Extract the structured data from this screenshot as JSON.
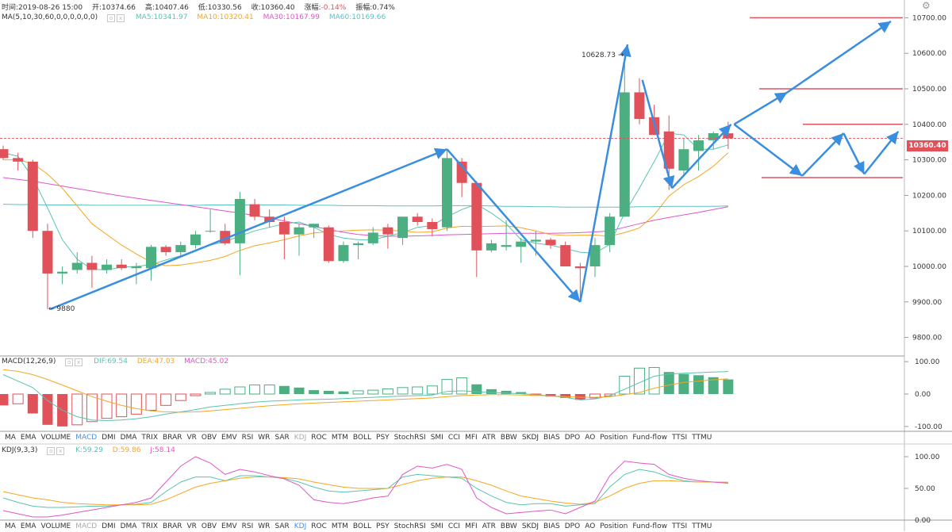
{
  "header": {
    "time": "时间:2019-08-26 15:00",
    "open": "开:10374.66",
    "high": "高:10407.46",
    "low": "低:10330.56",
    "close": "收:10360.40",
    "change_label": "涨幅:",
    "change_value": "-0.14%",
    "amplitude": "振幅:0.74%"
  },
  "ma_legend": {
    "label": "MA(5,10,30,60,0,0,0,0,0,0)",
    "ma5": "MA5:10341.97",
    "ma10": "MA10:10320.41",
    "ma30": "MA30:10167.99",
    "ma60": "MA60:10169.66"
  },
  "macd_legend": {
    "label": "MACD(12,26,9)",
    "dif": "DIF:69.54",
    "dea": "DEA:47.03",
    "macd": "MACD:45.02"
  },
  "kdj_legend": {
    "label": "KDJ(9,3,3)",
    "k": "K:59.29",
    "d": "D:59.86",
    "j": "J:58.14"
  },
  "current_price_tag": "10360.40",
  "annotations": {
    "high": "10628.73",
    "low": "9880"
  },
  "indicator_tabs": [
    "MA",
    "EMA",
    "VOLUME",
    "MACD",
    "DMI",
    "DMA",
    "TRIX",
    "BRAR",
    "VR",
    "OBV",
    "EMV",
    "RSI",
    "WR",
    "SAR",
    "KDJ",
    "ROC",
    "MTM",
    "BOLL",
    "PSY",
    "StochRSI",
    "SMI",
    "CCI",
    "MFI",
    "ATR",
    "BBW",
    "SKDJ",
    "BIAS",
    "DPO",
    "AO",
    "Position",
    "Fund-flow",
    "TTSI",
    "TTMU"
  ],
  "indicator_tabs_row1_active": "MACD",
  "indicator_tabs_row1_dim": "KDJ",
  "indicator_tabs_row2_active": "KDJ",
  "indicator_tabs_row2_dim": "MACD",
  "colors": {
    "up": "#4caf82",
    "down": "#e0515a",
    "ma5": "#58c4b0",
    "ma10": "#f5a623",
    "ma30": "#e056c8",
    "ma60": "#5bc0c8",
    "arrow": "#3a8ee0",
    "level": "#e05560",
    "dif": "#58c4b0",
    "dea": "#f5a623",
    "kdj_k": "#58c4b0",
    "kdj_d": "#f5a623",
    "kdj_j": "#e056c8"
  },
  "chart_data": [
    {
      "type": "candlestick",
      "title": "",
      "ylim": [
        9750,
        10750
      ],
      "y_ticks": [
        "10700.00",
        "10600.00",
        "10500.00",
        "10400.00",
        "10300.00",
        "10200.00",
        "10100.00",
        "10000.00",
        "9900.00",
        "9800.00"
      ],
      "candles": [
        {
          "o": 10330,
          "h": 10340,
          "l": 10300,
          "c": 10305
        },
        {
          "o": 10305,
          "h": 10320,
          "l": 10270,
          "c": 10295
        },
        {
          "o": 10295,
          "h": 10300,
          "l": 10080,
          "c": 10100
        },
        {
          "o": 10100,
          "h": 10120,
          "l": 9880,
          "c": 9980
        },
        {
          "o": 9980,
          "h": 10000,
          "l": 9950,
          "c": 9985
        },
        {
          "o": 9990,
          "h": 10040,
          "l": 9980,
          "c": 10010
        },
        {
          "o": 10010,
          "h": 10030,
          "l": 9940,
          "c": 9990
        },
        {
          "o": 9990,
          "h": 10020,
          "l": 9980,
          "c": 10005
        },
        {
          "o": 10005,
          "h": 10020,
          "l": 9990,
          "c": 9995
        },
        {
          "o": 9995,
          "h": 10010,
          "l": 9950,
          "c": 10000
        },
        {
          "o": 9995,
          "h": 10060,
          "l": 9960,
          "c": 10055
        },
        {
          "o": 10055,
          "h": 10060,
          "l": 10030,
          "c": 10040
        },
        {
          "o": 10040,
          "h": 10070,
          "l": 10030,
          "c": 10060
        },
        {
          "o": 10060,
          "h": 10100,
          "l": 10050,
          "c": 10090
        },
        {
          "o": 10100,
          "h": 10160,
          "l": 10095,
          "c": 10100
        },
        {
          "o": 10100,
          "h": 10120,
          "l": 10060,
          "c": 10065
        },
        {
          "o": 10065,
          "h": 10210,
          "l": 9975,
          "c": 10190
        },
        {
          "o": 10175,
          "h": 10190,
          "l": 10130,
          "c": 10140
        },
        {
          "o": 10140,
          "h": 10160,
          "l": 10110,
          "c": 10125
        },
        {
          "o": 10125,
          "h": 10140,
          "l": 10020,
          "c": 10090
        },
        {
          "o": 10090,
          "h": 10120,
          "l": 10030,
          "c": 10110
        },
        {
          "o": 10110,
          "h": 10120,
          "l": 10080,
          "c": 10120
        },
        {
          "o": 10110,
          "h": 10115,
          "l": 10010,
          "c": 10015
        },
        {
          "o": 10015,
          "h": 10070,
          "l": 10010,
          "c": 10060
        },
        {
          "o": 10060,
          "h": 10070,
          "l": 10020,
          "c": 10065
        },
        {
          "o": 10065,
          "h": 10110,
          "l": 10060,
          "c": 10095
        },
        {
          "o": 10110,
          "h": 10120,
          "l": 10050,
          "c": 10090
        },
        {
          "o": 10080,
          "h": 10140,
          "l": 10060,
          "c": 10140
        },
        {
          "o": 10140,
          "h": 10150,
          "l": 10115,
          "c": 10125
        },
        {
          "o": 10125,
          "h": 10135,
          "l": 10085,
          "c": 10105
        },
        {
          "o": 10110,
          "h": 10330,
          "l": 10100,
          "c": 10305
        },
        {
          "o": 10295,
          "h": 10305,
          "l": 10195,
          "c": 10235
        },
        {
          "o": 10235,
          "h": 10240,
          "l": 9970,
          "c": 10045
        },
        {
          "o": 10045,
          "h": 10075,
          "l": 10040,
          "c": 10065
        },
        {
          "o": 10055,
          "h": 10130,
          "l": 10045,
          "c": 10060
        },
        {
          "o": 10055,
          "h": 10080,
          "l": 10010,
          "c": 10070
        },
        {
          "o": 10070,
          "h": 10100,
          "l": 10030,
          "c": 10075
        },
        {
          "o": 10075,
          "h": 10080,
          "l": 10050,
          "c": 10060
        },
        {
          "o": 10060,
          "h": 10070,
          "l": 10000,
          "c": 10000
        },
        {
          "o": 10000,
          "h": 10010,
          "l": 9905,
          "c": 9995
        },
        {
          "o": 10000,
          "h": 10080,
          "l": 9970,
          "c": 10060
        },
        {
          "o": 10060,
          "h": 10150,
          "l": 10040,
          "c": 10140
        },
        {
          "o": 10140,
          "h": 10610,
          "l": 10140,
          "c": 10490
        },
        {
          "o": 10490,
          "h": 10530,
          "l": 10400,
          "c": 10415
        },
        {
          "o": 10420,
          "h": 10455,
          "l": 10370,
          "c": 10370
        },
        {
          "o": 10380,
          "h": 10425,
          "l": 10215,
          "c": 10275
        },
        {
          "o": 10270,
          "h": 10360,
          "l": 10260,
          "c": 10330
        },
        {
          "o": 10325,
          "h": 10370,
          "l": 10270,
          "c": 10355
        },
        {
          "o": 10355,
          "h": 10380,
          "l": 10330,
          "c": 10375
        },
        {
          "o": 10374.66,
          "h": 10407.46,
          "l": 10330.56,
          "c": 10360.4
        }
      ],
      "ma5": [
        10320,
        10310,
        10250,
        10165,
        10075,
        10020,
        9992,
        9990,
        9998,
        10000,
        10005,
        10018,
        10030,
        10043,
        10060,
        10070,
        10085,
        10100,
        10110,
        10120,
        10125,
        10110,
        10090,
        10080,
        10075,
        10075,
        10085,
        10095,
        10110,
        10115,
        10140,
        10160,
        10175,
        10150,
        10120,
        10075,
        10065,
        10060,
        10050,
        10040,
        10037,
        10062,
        10150,
        10220,
        10295,
        10375,
        10370,
        10330,
        10330,
        10342
      ],
      "ma10": [
        10300,
        10300,
        10290,
        10260,
        10220,
        10170,
        10120,
        10090,
        10060,
        10035,
        10012,
        10002,
        10004,
        10010,
        10017,
        10028,
        10045,
        10058,
        10066,
        10075,
        10086,
        10094,
        10098,
        10100,
        10102,
        10103,
        10102,
        10099,
        10096,
        10097,
        10108,
        10113,
        10112,
        10113,
        10114,
        10109,
        10100,
        10090,
        10087,
        10088,
        10088,
        10085,
        10095,
        10108,
        10145,
        10198,
        10230,
        10253,
        10282,
        10320
      ],
      "ma30": [
        10250,
        10245,
        10240,
        10233,
        10226,
        10219,
        10212,
        10205,
        10198,
        10192,
        10186,
        10180,
        10174,
        10168,
        10162,
        10156,
        10150,
        10143,
        10136,
        10128,
        10120,
        10112,
        10104,
        10096,
        10090,
        10087,
        10085,
        10085,
        10086,
        10087,
        10089,
        10090,
        10091,
        10092,
        10093,
        10093,
        10093,
        10093,
        10094,
        10095,
        10097,
        10100,
        10110,
        10120,
        10130,
        10138,
        10145,
        10152,
        10160,
        10168
      ],
      "ma60": [
        10175,
        10174,
        10174,
        10173,
        10173,
        10173,
        10172,
        10172,
        10172,
        10172,
        10172,
        10172,
        10172,
        10172,
        10173,
        10173,
        10173,
        10173,
        10173,
        10173,
        10172,
        10172,
        10172,
        10171,
        10171,
        10171,
        10170,
        10170,
        10170,
        10170,
        10171,
        10171,
        10171,
        10170,
        10169,
        10169,
        10168,
        10168,
        10167,
        10167,
        10167,
        10167,
        10167,
        10168,
        10168,
        10169,
        10169,
        10169,
        10169,
        10170
      ]
    },
    {
      "type": "bar",
      "title": "",
      "ylim": [
        -115,
        115
      ],
      "y_ticks": [
        "100.00",
        "0.00",
        "-100.00"
      ],
      "macd": [
        -35,
        -30,
        -60,
        -95,
        -100,
        -95,
        -85,
        -75,
        -70,
        -62,
        -50,
        -35,
        -20,
        -5,
        5,
        15,
        22,
        28,
        28,
        25,
        20,
        12,
        10,
        8,
        10,
        12,
        16,
        20,
        22,
        25,
        45,
        50,
        30,
        15,
        10,
        6,
        -4,
        -8,
        -12,
        -18,
        -12,
        -6,
        55,
        80,
        82,
        68,
        62,
        58,
        52,
        45
      ],
      "dif": [
        60,
        40,
        20,
        -20,
        -50,
        -70,
        -80,
        -82,
        -80,
        -76,
        -70,
        -62,
        -55,
        -48,
        -40,
        -35,
        -30,
        -25,
        -22,
        -20,
        -18,
        -17,
        -16,
        -14,
        -12,
        -10,
        -8,
        -6,
        -5,
        -3,
        8,
        10,
        7,
        5,
        3,
        1,
        -2,
        -6,
        -10,
        -18,
        -15,
        -5,
        15,
        35,
        55,
        62,
        64,
        66,
        68,
        69.54
      ],
      "dea": [
        75,
        70,
        60,
        45,
        28,
        10,
        -8,
        -22,
        -35,
        -45,
        -52,
        -55,
        -56,
        -55,
        -52,
        -48,
        -44,
        -40,
        -36,
        -33,
        -30,
        -28,
        -26,
        -24,
        -22,
        -20,
        -18,
        -16,
        -14,
        -12,
        -8,
        -5,
        -3,
        -2,
        -2,
        -3,
        -4,
        -6,
        -8,
        -10,
        -10,
        -8,
        -2,
        5,
        18,
        28,
        36,
        40,
        44,
        47.03
      ]
    },
    {
      "type": "line",
      "title": "",
      "ylim": [
        0,
        120
      ],
      "y_ticks": [
        "100.00",
        "50.00",
        "0.00"
      ],
      "k": [
        35,
        28,
        22,
        20,
        20,
        21,
        22,
        22,
        24,
        25,
        28,
        45,
        60,
        68,
        68,
        62,
        70,
        70,
        68,
        66,
        60,
        52,
        46,
        44,
        46,
        48,
        50,
        68,
        72,
        70,
        68,
        66,
        50,
        38,
        28,
        24,
        26,
        26,
        22,
        24,
        26,
        52,
        72,
        80,
        76,
        68,
        62,
        60,
        60,
        59.29
      ],
      "d": [
        45,
        40,
        35,
        32,
        28,
        26,
        25,
        24,
        24,
        24,
        25,
        32,
        42,
        52,
        58,
        62,
        66,
        68,
        68,
        67,
        65,
        60,
        56,
        52,
        50,
        50,
        50,
        56,
        62,
        66,
        68,
        68,
        62,
        55,
        46,
        38,
        34,
        30,
        27,
        25,
        28,
        38,
        50,
        58,
        62,
        62,
        61,
        60,
        60,
        59.86
      ],
      "j": [
        15,
        10,
        5,
        5,
        8,
        12,
        16,
        20,
        24,
        28,
        35,
        60,
        85,
        100,
        90,
        72,
        80,
        76,
        70,
        65,
        55,
        32,
        28,
        26,
        30,
        35,
        38,
        72,
        85,
        82,
        88,
        80,
        35,
        20,
        10,
        12,
        14,
        16,
        10,
        20,
        30,
        70,
        93,
        90,
        88,
        72,
        66,
        62,
        60,
        58.14
      ]
    }
  ],
  "forecast_levels": [
    "10700",
    "10500",
    "10400",
    "10250"
  ]
}
